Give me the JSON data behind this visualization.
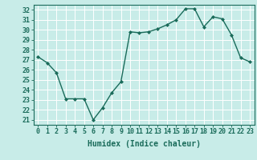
{
  "x": [
    0,
    1,
    2,
    3,
    4,
    5,
    6,
    7,
    8,
    9,
    10,
    11,
    12,
    13,
    14,
    15,
    16,
    17,
    18,
    19,
    20,
    21,
    22,
    23
  ],
  "y": [
    27.3,
    26.7,
    25.7,
    23.1,
    23.1,
    23.1,
    21.0,
    22.2,
    23.7,
    24.8,
    29.8,
    29.7,
    29.8,
    30.1,
    30.5,
    31.0,
    32.1,
    32.1,
    30.3,
    31.3,
    31.1,
    29.5,
    27.2,
    26.8
  ],
  "line_color": "#1a6b5a",
  "marker": "D",
  "marker_size": 2.0,
  "bg_color": "#c8ece8",
  "grid_color": "#ffffff",
  "xlim": [
    -0.5,
    23.5
  ],
  "ylim": [
    20.5,
    32.5
  ],
  "yticks": [
    21,
    22,
    23,
    24,
    25,
    26,
    27,
    28,
    29,
    30,
    31,
    32
  ],
  "xtick_labels": [
    "0",
    "1",
    "2",
    "3",
    "4",
    "5",
    "6",
    "7",
    "8",
    "9",
    "10",
    "11",
    "12",
    "13",
    "14",
    "15",
    "16",
    "17",
    "18",
    "19",
    "20",
    "21",
    "22",
    "23"
  ],
  "xlabel": "Humidex (Indice chaleur)",
  "xlabel_fontsize": 7,
  "tick_fontsize": 6,
  "tick_color": "#1a6b5a",
  "axis_color": "#1a6b5a",
  "line_width": 1.0
}
